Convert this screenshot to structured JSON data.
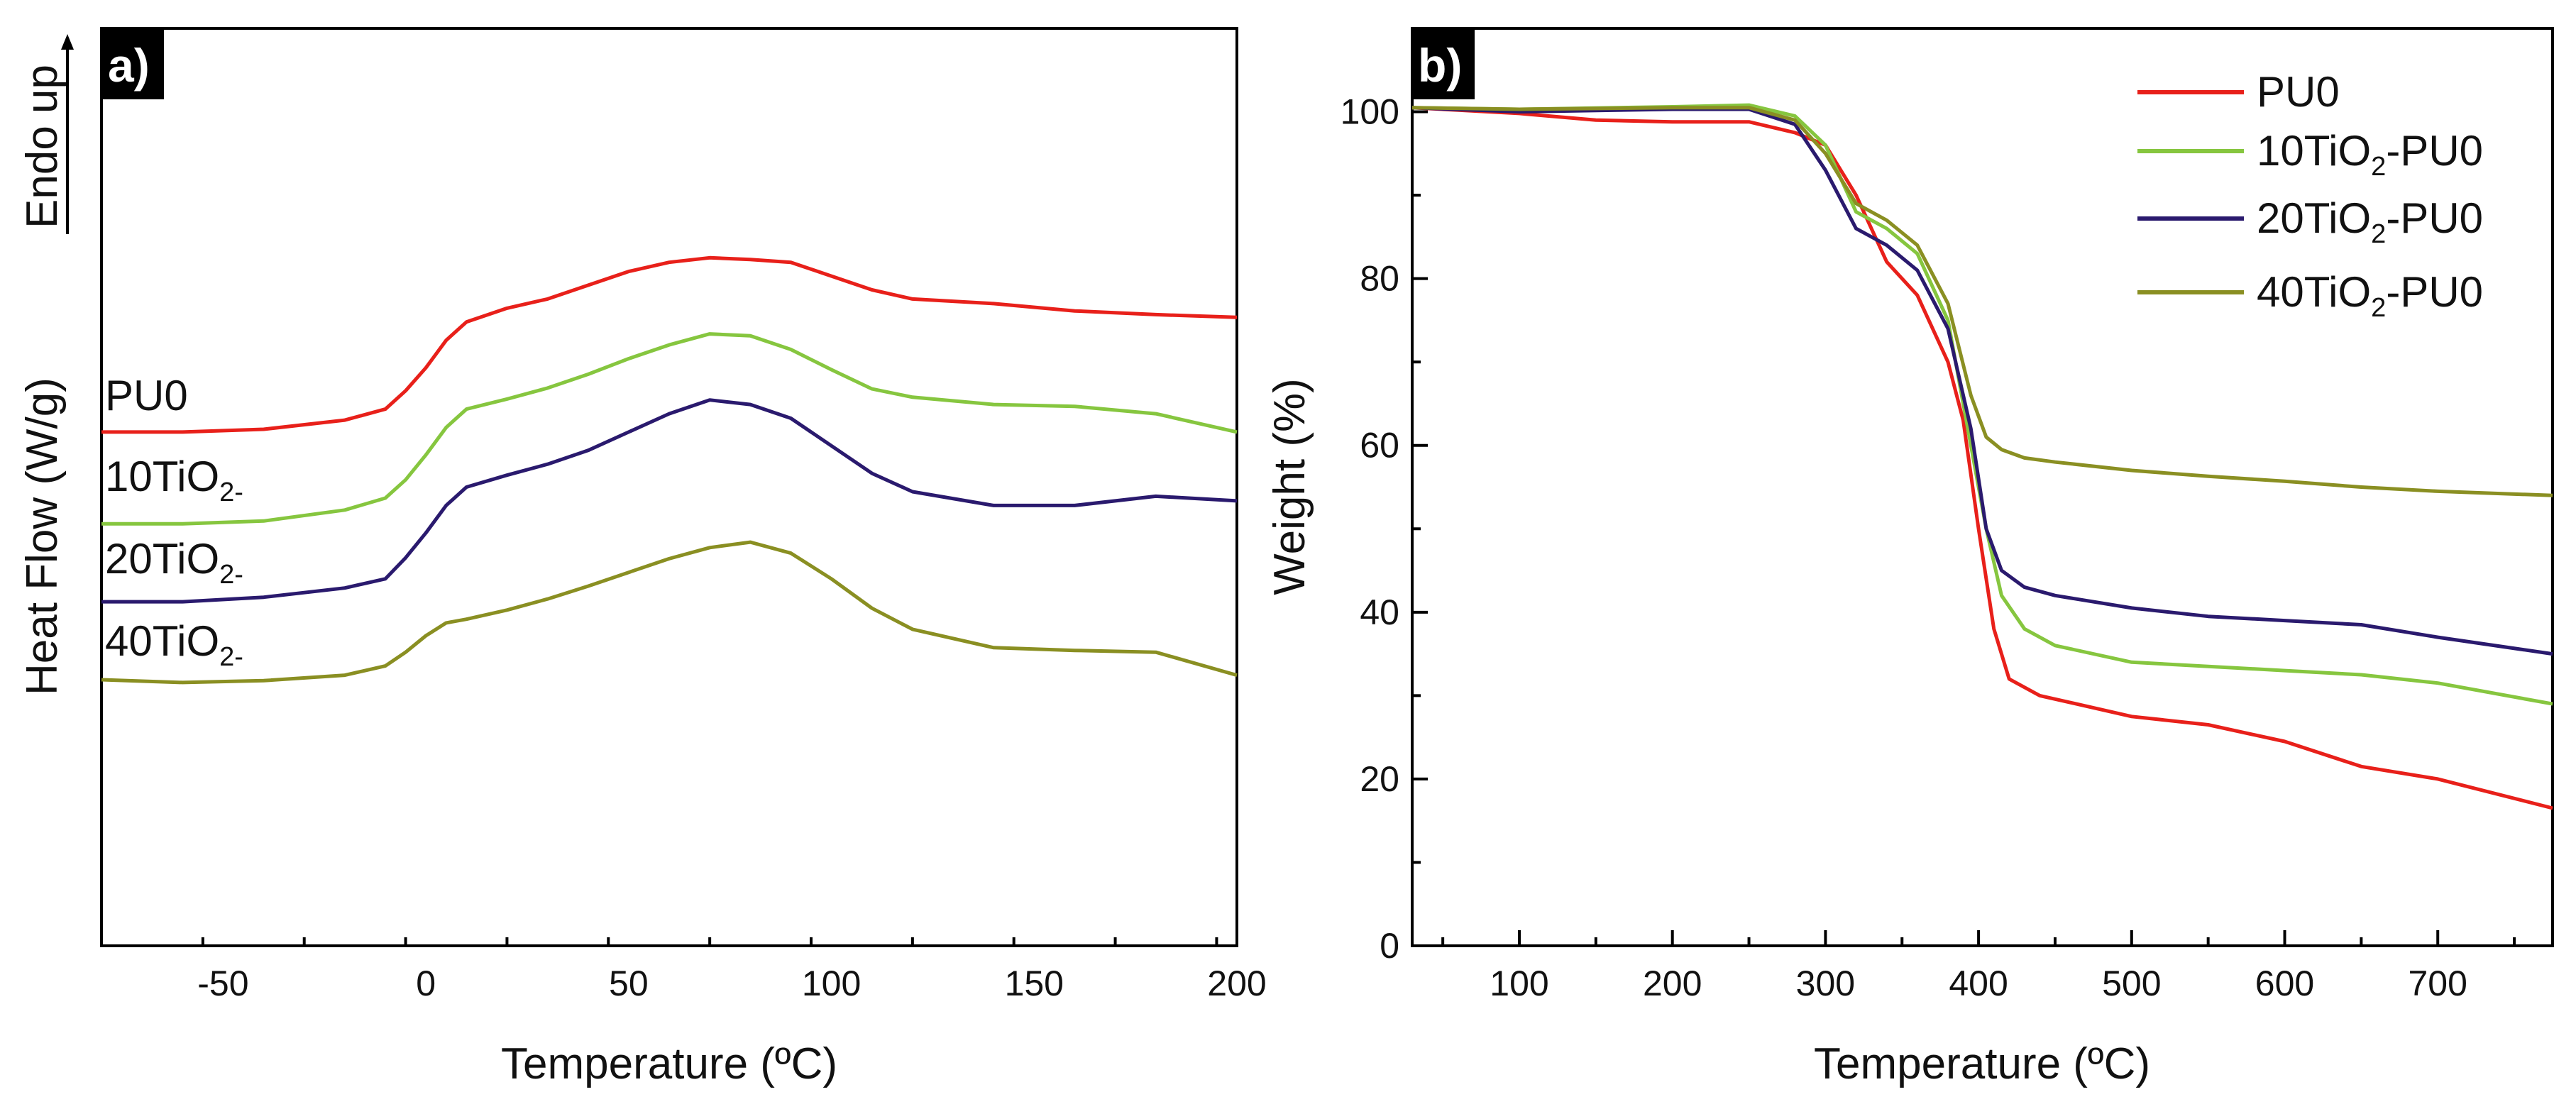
{
  "chart_data": [
    {
      "type": "line",
      "panel_label": "a)",
      "xlabel": "Temperature (ºC)",
      "ylabel": "Heat Flow (W/g)",
      "ylabel_note": "Endo up",
      "xlim": [
        -80,
        200
      ],
      "ylim": [
        0,
        100
      ],
      "y_units_note": "arbitrary (stacked DSC curves, no y tick labels)",
      "xticks": [
        "-50",
        "0",
        "50",
        "100",
        "150",
        "200"
      ],
      "xtick_values": [
        -50,
        0,
        50,
        100,
        150,
        200
      ],
      "x": [
        -80,
        -60,
        -40,
        -20,
        -10,
        -5,
        0,
        5,
        10,
        20,
        30,
        40,
        50,
        60,
        70,
        80,
        90,
        100,
        110,
        120,
        140,
        160,
        180,
        200
      ],
      "series": [
        {
          "name": "PU0",
          "label": "PU0",
          "color": "#e8201a",
          "values": [
            56.0,
            56.0,
            56.3,
            57.3,
            58.5,
            60.5,
            63.0,
            66.0,
            68.0,
            69.5,
            70.5,
            72.0,
            73.5,
            74.5,
            75.0,
            74.8,
            74.5,
            73.0,
            71.5,
            70.5,
            70.0,
            69.2,
            68.8,
            68.5
          ]
        },
        {
          "name": "10TiO2-PU0",
          "label_main": "10TiO",
          "label_sub": "2-",
          "color": "#86c63f",
          "values": [
            46.0,
            46.0,
            46.3,
            47.5,
            48.8,
            50.8,
            53.5,
            56.5,
            58.5,
            59.6,
            60.8,
            62.3,
            64.0,
            65.5,
            66.7,
            66.5,
            65.0,
            62.8,
            60.7,
            59.8,
            59.0,
            58.8,
            58.0,
            56.0
          ]
        },
        {
          "name": "20TiO2-PU0",
          "label_main": "20TiO",
          "label_sub": "2-",
          "color": "#2a1a6e",
          "values": [
            37.5,
            37.5,
            38.0,
            39.0,
            40.0,
            42.3,
            45.0,
            48.0,
            50.0,
            51.3,
            52.5,
            54.0,
            56.0,
            58.0,
            59.5,
            59.0,
            57.5,
            54.5,
            51.5,
            49.5,
            48.0,
            48.0,
            49.0,
            48.5
          ]
        },
        {
          "name": "40TiO2-PU0",
          "label_main": "40TiO",
          "label_sub": "2-",
          "color": "#8a8f22",
          "values": [
            29.0,
            28.7,
            28.9,
            29.5,
            30.5,
            32.0,
            33.8,
            35.2,
            35.6,
            36.6,
            37.8,
            39.2,
            40.7,
            42.2,
            43.4,
            44.0,
            42.8,
            40.0,
            36.8,
            34.5,
            32.5,
            32.2,
            32.0,
            29.5
          ]
        }
      ]
    },
    {
      "type": "line",
      "panel_label": "b)",
      "xlabel": "Temperature (ºC)",
      "ylabel": "Weight (%)",
      "xlim": [
        30,
        775
      ],
      "ylim": [
        0,
        110
      ],
      "xticks": [
        "100",
        "200",
        "300",
        "400",
        "500",
        "600",
        "700"
      ],
      "xtick_values": [
        100,
        200,
        300,
        400,
        500,
        600,
        700
      ],
      "yticks": [
        "0",
        "20",
        "40",
        "60",
        "80",
        "100"
      ],
      "ytick_values": [
        0,
        20,
        40,
        60,
        80,
        100
      ],
      "legend_position": "top-right",
      "series": [
        {
          "name": "PU0",
          "legend_main": "PU0",
          "legend_sub": "",
          "legend_suffix": "",
          "color": "#e8201a",
          "x": [
            30,
            100,
            150,
            200,
            250,
            280,
            300,
            320,
            340,
            360,
            380,
            390,
            400,
            410,
            420,
            440,
            500,
            550,
            600,
            650,
            700,
            775
          ],
          "y": [
            100.5,
            99.8,
            99.0,
            98.8,
            98.8,
            97.5,
            96.0,
            90.0,
            82.0,
            78.0,
            70.0,
            63.0,
            50.0,
            38.0,
            32.0,
            30.0,
            27.5,
            26.5,
            24.5,
            21.5,
            20.0,
            16.5
          ]
        },
        {
          "name": "10TiO2-PU0",
          "legend_main": "10TiO",
          "legend_sub": "2",
          "legend_suffix": "-PU0",
          "color": "#86c63f",
          "x": [
            30,
            100,
            200,
            250,
            280,
            300,
            320,
            340,
            360,
            380,
            395,
            405,
            415,
            430,
            450,
            500,
            550,
            600,
            650,
            700,
            775
          ],
          "y": [
            100.5,
            100.3,
            100.6,
            100.8,
            99.5,
            96.0,
            88.0,
            86.0,
            83.0,
            75.0,
            60.0,
            50.0,
            42.0,
            38.0,
            36.0,
            34.0,
            33.5,
            33.0,
            32.5,
            31.5,
            29.0
          ]
        },
        {
          "name": "20TiO2-PU0",
          "legend_main": "20TiO",
          "legend_sub": "2",
          "legend_suffix": "-PU0",
          "color": "#2a1a6e",
          "x": [
            30,
            100,
            200,
            250,
            280,
            300,
            320,
            340,
            360,
            380,
            395,
            405,
            415,
            430,
            450,
            500,
            550,
            600,
            650,
            700,
            775
          ],
          "y": [
            100.5,
            100.0,
            100.3,
            100.3,
            98.5,
            93.0,
            86.0,
            84.0,
            81.0,
            74.0,
            62.0,
            50.0,
            45.0,
            43.0,
            42.0,
            40.5,
            39.5,
            39.0,
            38.5,
            37.0,
            35.0
          ]
        },
        {
          "name": "40TiO2-PU0",
          "legend_main": "40TiO",
          "legend_sub": "2",
          "legend_suffix": "-PU0",
          "color": "#8a8f22",
          "x": [
            30,
            100,
            200,
            250,
            280,
            300,
            320,
            340,
            360,
            380,
            395,
            405,
            415,
            430,
            450,
            500,
            550,
            600,
            650,
            700,
            775
          ],
          "y": [
            100.5,
            100.3,
            100.5,
            100.5,
            99.0,
            95.0,
            89.0,
            87.0,
            84.0,
            77.0,
            66.0,
            61.0,
            59.5,
            58.5,
            58.0,
            57.0,
            56.3,
            55.7,
            55.0,
            54.5,
            54.0
          ]
        }
      ]
    }
  ]
}
